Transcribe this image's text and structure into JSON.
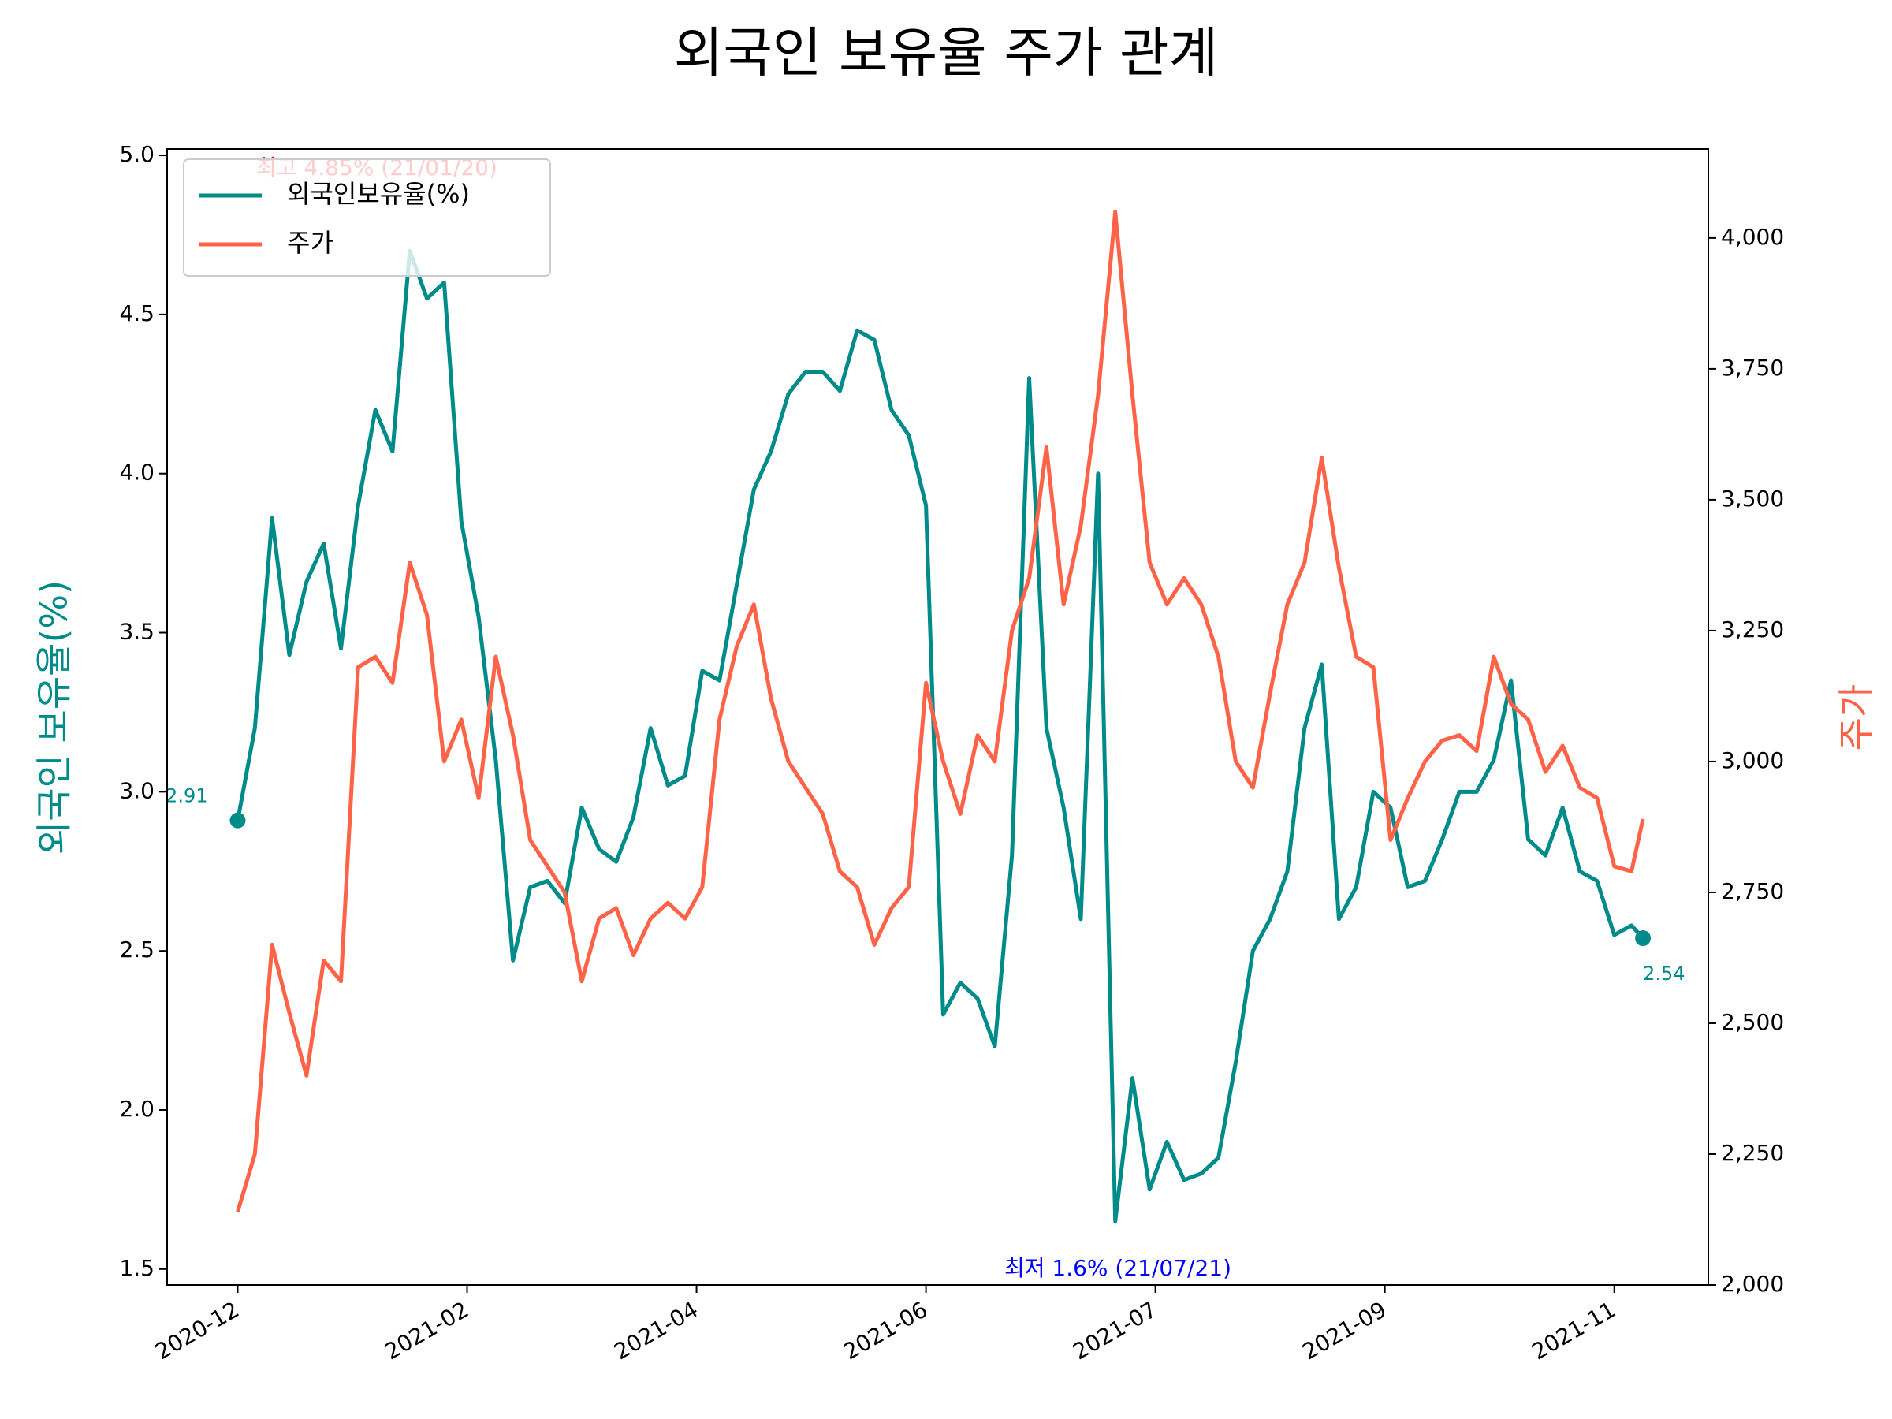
{
  "chart_data": {
    "type": "line",
    "title": "외국인 보유율 주가 관계",
    "ylabel": "외국인 보유율(%)",
    "y2label": "주가",
    "x": [
      0,
      3,
      6,
      9,
      12,
      15,
      18,
      21,
      24,
      27,
      30,
      33,
      36,
      39,
      42,
      45,
      48,
      51,
      54,
      57,
      60,
      63,
      66,
      69,
      72,
      75,
      78,
      81,
      84,
      87,
      90,
      93,
      96,
      99,
      102,
      105,
      108,
      111,
      114,
      117,
      120,
      123,
      126,
      129,
      132,
      135,
      138,
      141,
      144,
      147,
      150,
      153,
      156,
      159,
      162,
      165,
      168,
      171,
      174,
      177,
      180,
      183,
      186,
      189,
      192,
      195,
      198,
      201,
      204,
      207,
      210,
      213,
      216,
      219,
      222,
      225,
      228,
      231,
      234,
      237,
      240,
      243,
      245
    ],
    "series": [
      {
        "name": "외국인보유율(%)",
        "color": "#008b8b",
        "axis": "y",
        "values": [
          2.91,
          3.2,
          3.86,
          3.43,
          3.66,
          3.78,
          3.45,
          3.9,
          4.2,
          4.07,
          4.7,
          4.55,
          4.6,
          3.85,
          3.55,
          3.1,
          2.47,
          2.7,
          2.72,
          2.65,
          2.95,
          2.82,
          2.78,
          2.92,
          3.2,
          3.02,
          3.05,
          3.38,
          3.35,
          3.65,
          3.95,
          4.07,
          4.25,
          4.32,
          4.32,
          4.26,
          4.45,
          4.42,
          4.2,
          4.12,
          3.9,
          2.3,
          2.4,
          2.35,
          2.2,
          2.8,
          4.3,
          3.2,
          2.95,
          2.6,
          4.0,
          1.65,
          2.1,
          1.75,
          1.9,
          1.78,
          1.8,
          1.85,
          2.15,
          2.5,
          2.6,
          2.75,
          3.2,
          3.4,
          2.6,
          2.7,
          3.0,
          2.95,
          2.7,
          2.72,
          2.85,
          3.0,
          3.0,
          3.1,
          3.35,
          2.85,
          2.8,
          2.95,
          2.75,
          2.72,
          2.55,
          2.58,
          2.54
        ]
      },
      {
        "name": "주가",
        "color": "#ff6347",
        "axis": "y2",
        "values": [
          2140,
          2250,
          2650,
          2520,
          2400,
          2620,
          2580,
          3180,
          3200,
          3150,
          3380,
          3280,
          3000,
          3080,
          2930,
          3200,
          3050,
          2850,
          2800,
          2750,
          2580,
          2700,
          2720,
          2630,
          2700,
          2730,
          2700,
          2760,
          3080,
          3220,
          3300,
          3120,
          3000,
          2950,
          2900,
          2790,
          2760,
          2650,
          2720,
          2760,
          3150,
          3000,
          2900,
          3050,
          3000,
          3250,
          3350,
          3600,
          3300,
          3450,
          3700,
          4050,
          3700,
          3380,
          3300,
          3350,
          3300,
          3200,
          3000,
          2950,
          3130,
          3300,
          3380,
          3580,
          3370,
          3200,
          3180,
          2850,
          2930,
          3000,
          3040,
          3050,
          3020,
          3200,
          3110,
          3080,
          2980,
          3030,
          2950,
          2930,
          2800,
          2790,
          2890
        ]
      }
    ],
    "xlim": [
      -12.3,
      256.4
    ],
    "xticks": [
      {
        "value": 0,
        "label": "2020-12"
      },
      {
        "value": 40,
        "label": "2021-02"
      },
      {
        "value": 80,
        "label": "2021-04"
      },
      {
        "value": 120,
        "label": "2021-06"
      },
      {
        "value": 160,
        "label": "2021-07"
      },
      {
        "value": 200,
        "label": "2021-09"
      },
      {
        "value": 240,
        "label": "2021-11"
      }
    ],
    "ylim": [
      1.45,
      5.02
    ],
    "yticks": [
      {
        "value": 1.5,
        "label": "1.5"
      },
      {
        "value": 2,
        "label": "2.0"
      },
      {
        "value": 2.5,
        "label": "2.5"
      },
      {
        "value": 3,
        "label": "3.0"
      },
      {
        "value": 3.5,
        "label": "3.5"
      },
      {
        "value": 4,
        "label": "4.0"
      },
      {
        "value": 4.5,
        "label": "4.5"
      },
      {
        "value": 5,
        "label": "5.0"
      }
    ],
    "y2lim": [
      2000,
      4170
    ],
    "y2ticks": [
      {
        "value": 2000,
        "label": "2,000"
      },
      {
        "value": 2250,
        "label": "2,250"
      },
      {
        "value": 2500,
        "label": "2,500"
      },
      {
        "value": 2750,
        "label": "2,750"
      },
      {
        "value": 3000,
        "label": "3,000"
      },
      {
        "value": 3250,
        "label": "3,250"
      },
      {
        "value": 3500,
        "label": "3,500"
      },
      {
        "value": 3750,
        "label": "3,750"
      },
      {
        "value": 4000,
        "label": "4,000"
      }
    ],
    "annotations": [
      {
        "text": "최고 4.85% (21/01/20)",
        "color": "#ff0000"
      },
      {
        "text": "최저 1.6% (21/07/21)",
        "color": "#0000ff"
      }
    ],
    "legend": "upper left"
  }
}
